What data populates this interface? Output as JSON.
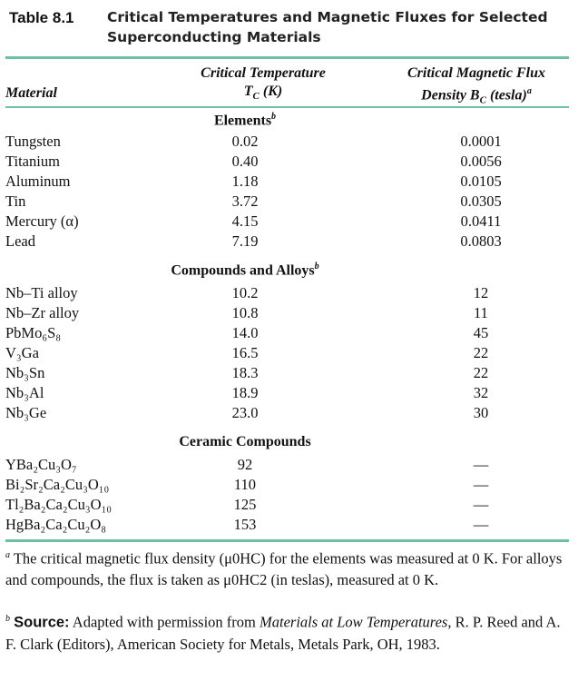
{
  "caption": {
    "number": "Table 8.1",
    "title_line1": "Critical Temperatures and Magnetic Fluxes for Selected",
    "title_line2": "Superconducting Materials"
  },
  "headers": {
    "material": "Material",
    "tc_line1": "Critical Temperature",
    "tc_line2": "TC (K)",
    "bc_line1": "Critical Magnetic Flux",
    "bc_line2": "Density BC (tesla)",
    "bc_note": "a"
  },
  "sections": [
    {
      "title": "Elements",
      "note": "b",
      "rows": [
        {
          "material": "Tungsten",
          "tc": "0.02",
          "bc": "0.0001"
        },
        {
          "material": "Titanium",
          "tc": "0.40",
          "bc": "0.0056"
        },
        {
          "material": "Aluminum",
          "tc": "1.18",
          "bc": "0.0105"
        },
        {
          "material": "Tin",
          "tc": "3.72",
          "bc": "0.0305"
        },
        {
          "material": "Mercury (α)",
          "tc": "4.15",
          "bc": "0.0411"
        },
        {
          "material": "Lead",
          "tc": "7.19",
          "bc": "0.0803"
        }
      ]
    },
    {
      "title": "Compounds and Alloys",
      "note": "b",
      "rows": [
        {
          "material": "Nb–Ti alloy",
          "tc": "10.2",
          "bc": "12"
        },
        {
          "material": "Nb–Zr alloy",
          "tc": "10.8",
          "bc": "11"
        },
        {
          "material": "PbMo₆S₈",
          "tc": "14.0",
          "bc": "45"
        },
        {
          "material": "V₃Ga",
          "tc": "16.5",
          "bc": "22"
        },
        {
          "material": "Nb₃Sn",
          "tc": "18.3",
          "bc": "22"
        },
        {
          "material": "Nb₃Al",
          "tc": "18.9",
          "bc": "32"
        },
        {
          "material": "Nb₃Ge",
          "tc": "23.0",
          "bc": "30"
        }
      ]
    },
    {
      "title": "Ceramic Compounds",
      "note": "",
      "rows": [
        {
          "material": "YBa₂Cu₃O₇",
          "tc": "92",
          "bc": "—"
        },
        {
          "material": "Bi₂Sr₂Ca₂Cu₃O₁₀",
          "tc": "110",
          "bc": "—"
        },
        {
          "material": "Tl₂Ba₂Ca₂Cu₃O₁₀",
          "tc": "125",
          "bc": "—"
        },
        {
          "material": "HgBa₂Ca₂Cu₂O₈",
          "tc": "153",
          "bc": "—"
        }
      ]
    }
  ],
  "footnotes": {
    "a_mark": "a",
    "a_text": "The critical magnetic flux density (μ0HC) for the elements was measured at 0 K. For alloys and compounds, the flux is taken as μ0HC2 (in teslas), measured at 0 K.",
    "b_mark": "b",
    "b_label": "Source:",
    "b_text_1": "Adapted with permission from",
    "b_book": "Materials at Low Temperatures,",
    "b_text_2": "R. P. Reed and A. F. Clark (Editors), American Society for Metals, Metals Park, OH, 1983."
  }
}
